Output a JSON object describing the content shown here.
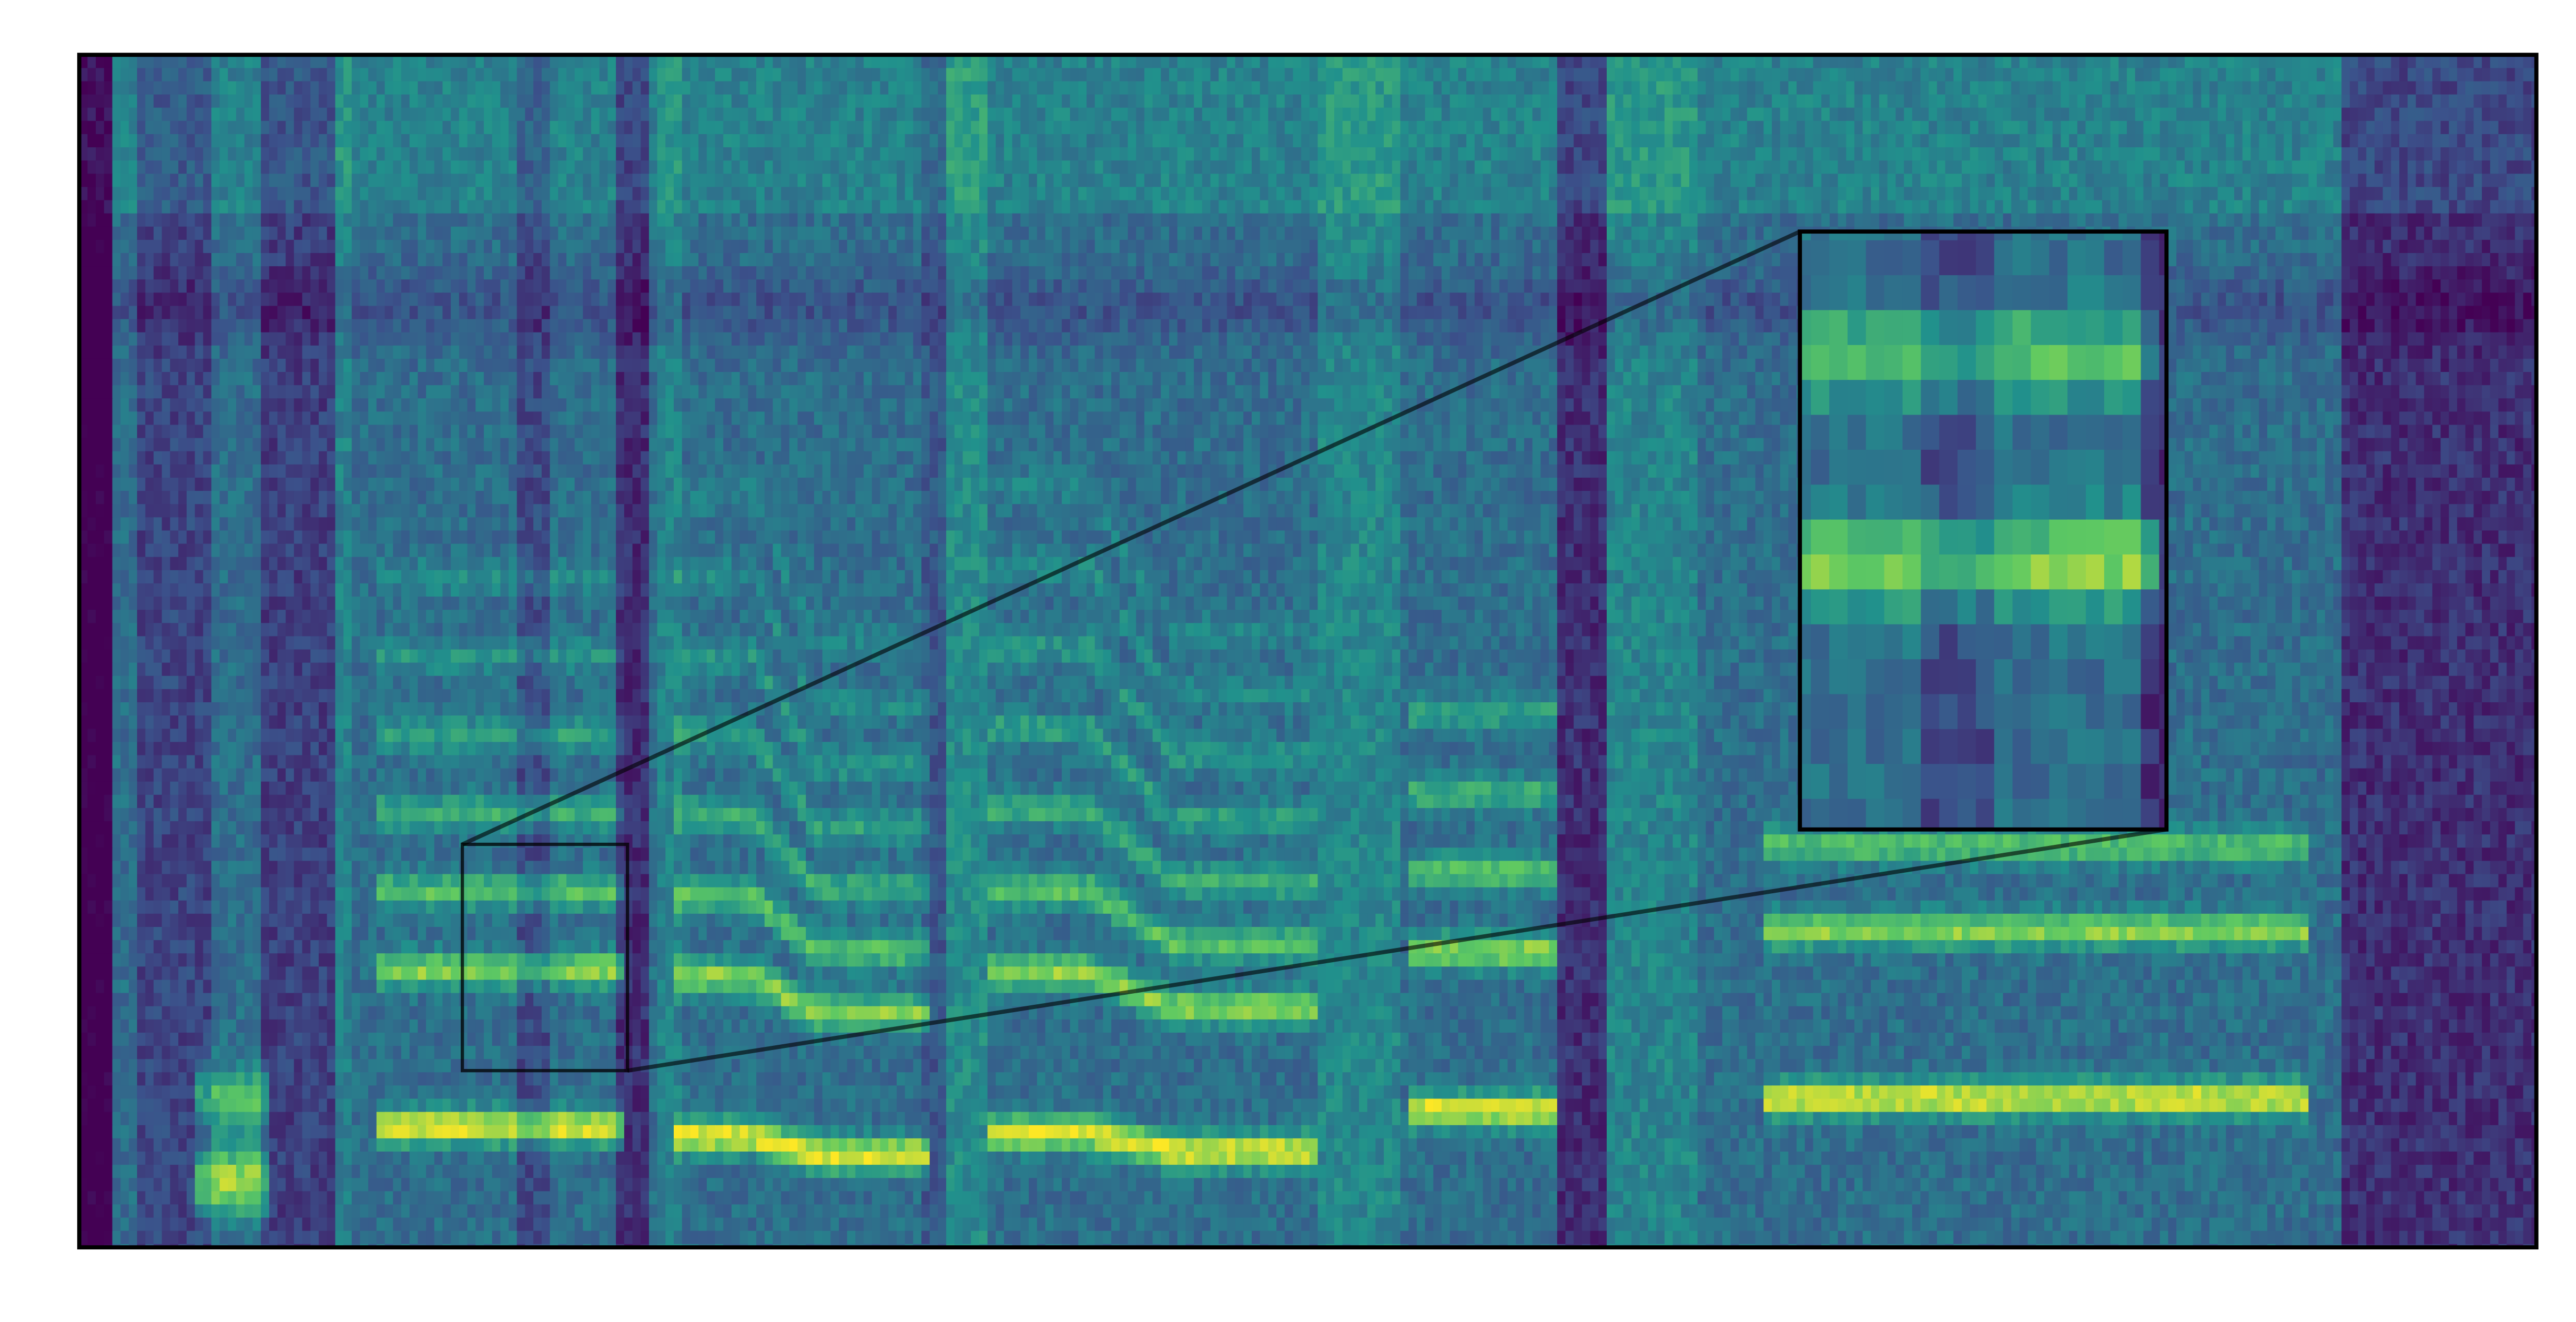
{
  "chart_data": {
    "type": "heatmap"
  }
}
